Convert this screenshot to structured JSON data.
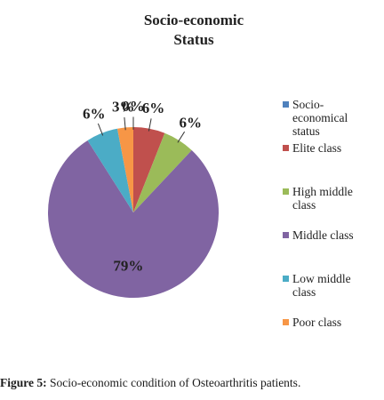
{
  "chart_data": {
    "type": "pie",
    "title": [
      "Socio-economic",
      "Status"
    ],
    "categories": [
      "Socio-economical status",
      "Elite class",
      "High middle class",
      "Middle class",
      "Low middle class",
      "Poor class"
    ],
    "legend_lines": [
      [
        "Socio-",
        "economical",
        "status"
      ],
      [
        "Elite class"
      ],
      [
        "High middle",
        "class"
      ],
      [
        "Middle class"
      ],
      [
        "Low middle",
        "class"
      ],
      [
        "Poor class"
      ]
    ],
    "values": [
      0,
      6,
      6,
      79,
      6,
      3
    ],
    "labels": [
      "0%",
      "6%",
      "6%",
      "79%",
      "6%",
      "3%"
    ],
    "colors": [
      "#4F81BD",
      "#C0504D",
      "#9BBB59",
      "#8064A2",
      "#4BACC6",
      "#F79646"
    ],
    "legend_position": "right"
  },
  "caption": {
    "label": "Figure 5:",
    "text": " Socio-economic condition of Osteoarthritis patients."
  }
}
